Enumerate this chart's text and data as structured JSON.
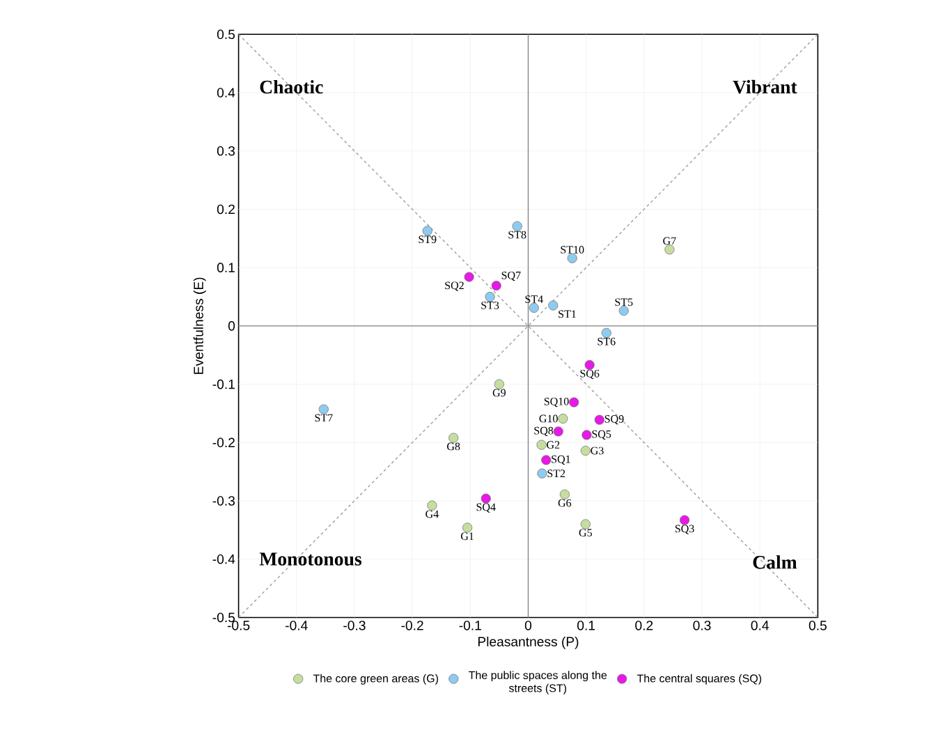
{
  "chart_data": {
    "type": "scatter",
    "xlabel": "Pleasantness (P)",
    "ylabel": "Eventfulness (E)",
    "xlim": [
      -0.5,
      0.5
    ],
    "ylim": [
      -0.5,
      0.5
    ],
    "xticks": [
      -0.5,
      -0.4,
      -0.3,
      -0.2,
      -0.1,
      0,
      0.1,
      0.2,
      0.3,
      0.4,
      0.5
    ],
    "yticks": [
      -0.5,
      -0.4,
      -0.3,
      -0.2,
      -0.1,
      0,
      0.1,
      0.2,
      0.3,
      0.4,
      0.5
    ],
    "grid": true,
    "legend": "bottom",
    "series": [
      {
        "name": "The core green areas (G)",
        "marker": "circle",
        "color": "#c5dea0",
        "x": [
          -0.105,
          0.023,
          0.099,
          -0.166,
          0.099,
          0.063,
          0.244,
          -0.129,
          -0.05,
          0.06
        ],
        "values": [
          -0.346,
          -0.204,
          -0.214,
          -0.308,
          -0.34,
          -0.289,
          0.131,
          -0.192,
          -0.1,
          -0.159
        ]
      },
      {
        "name": "The public spaces along the streets (ST)",
        "marker": "circle",
        "color": "#8ecbf0",
        "x": [
          0.043,
          0.024,
          -0.066,
          0.01,
          0.165,
          0.135,
          -0.353,
          -0.019,
          -0.174,
          0.076
        ],
        "values": [
          0.035,
          -0.253,
          0.05,
          0.031,
          0.026,
          -0.012,
          -0.143,
          0.171,
          0.163,
          0.116
        ]
      },
      {
        "name": "The central squares (SQ)",
        "marker": "circle",
        "color": "#e619e6",
        "x": [
          0.031,
          -0.102,
          0.27,
          -0.073,
          0.101,
          0.106,
          -0.055,
          0.052,
          0.123,
          0.079
        ],
        "values": [
          -0.23,
          0.084,
          -0.333,
          -0.296,
          -0.187,
          -0.067,
          0.069,
          -0.181,
          -0.161,
          -0.131
        ]
      },
      {
        "type": "line",
        "marker": "none",
        "color": "#999999",
        "line_style": "dashed",
        "x": [
          -0.5,
          0.5
        ],
        "values": [
          -0.5,
          0.5
        ]
      },
      {
        "type": "line",
        "marker": "none",
        "color": "#999999",
        "line_style": "dashed",
        "x": [
          -0.5,
          0.5
        ],
        "values": [
          0.5,
          -0.5
        ]
      },
      {
        "type": "line",
        "marker": "none",
        "color": "#808080",
        "line_style": "solid",
        "x": [
          0,
          0
        ],
        "values": [
          -0.5,
          0.5
        ]
      },
      {
        "type": "line",
        "marker": "none",
        "color": "#808080",
        "line_style": "solid",
        "x": [
          -0.5,
          0.5
        ],
        "values": [
          0,
          0
        ]
      }
    ],
    "annotations": [
      "Chaotic",
      "Vibrant",
      "Monotonous",
      "Calm",
      {
        "text": "G1",
        "x": -0.105,
        "y": -0.346
      },
      {
        "text": "G2",
        "x": 0.023,
        "y": -0.204
      },
      {
        "text": "G3",
        "x": 0.099,
        "y": -0.214
      },
      {
        "text": "G4",
        "x": -0.166,
        "y": -0.308
      },
      {
        "text": "G5",
        "x": 0.099,
        "y": -0.34
      },
      {
        "text": "G6",
        "x": 0.063,
        "y": -0.289
      },
      {
        "text": "G7",
        "x": 0.244,
        "y": 0.131
      },
      {
        "text": "G8",
        "x": -0.129,
        "y": -0.192
      },
      {
        "text": "G9",
        "x": -0.05,
        "y": -0.1
      },
      {
        "text": "G10",
        "x": 0.06,
        "y": -0.159
      },
      {
        "text": "ST1",
        "x": 0.043,
        "y": 0.035
      },
      {
        "text": "ST2",
        "x": 0.024,
        "y": -0.253
      },
      {
        "text": "ST3",
        "x": -0.066,
        "y": 0.05
      },
      {
        "text": "ST4",
        "x": 0.01,
        "y": 0.031
      },
      {
        "text": "ST5",
        "x": 0.165,
        "y": 0.026
      },
      {
        "text": "ST6",
        "x": 0.135,
        "y": -0.012
      },
      {
        "text": "ST7",
        "x": -0.353,
        "y": -0.143
      },
      {
        "text": "ST8",
        "x": -0.019,
        "y": 0.171
      },
      {
        "text": "ST9",
        "x": -0.174,
        "y": 0.163
      },
      {
        "text": "ST10",
        "x": 0.076,
        "y": 0.116
      },
      {
        "text": "SQ1",
        "x": 0.031,
        "y": -0.23
      },
      {
        "text": "SQ2",
        "x": -0.102,
        "y": 0.084
      },
      {
        "text": "SQ3",
        "x": 0.27,
        "y": -0.333
      },
      {
        "text": "SQ4",
        "x": -0.073,
        "y": -0.296
      },
      {
        "text": "SQ5",
        "x": 0.101,
        "y": -0.187
      },
      {
        "text": "SQ6",
        "x": 0.106,
        "y": -0.067
      },
      {
        "text": "SQ7",
        "x": -0.055,
        "y": 0.069
      },
      {
        "text": "SQ8",
        "x": 0.052,
        "y": -0.181
      },
      {
        "text": "SQ9",
        "x": 0.123,
        "y": -0.161
      },
      {
        "text": "SQ10",
        "x": 0.079,
        "y": -0.131
      }
    ]
  }
}
